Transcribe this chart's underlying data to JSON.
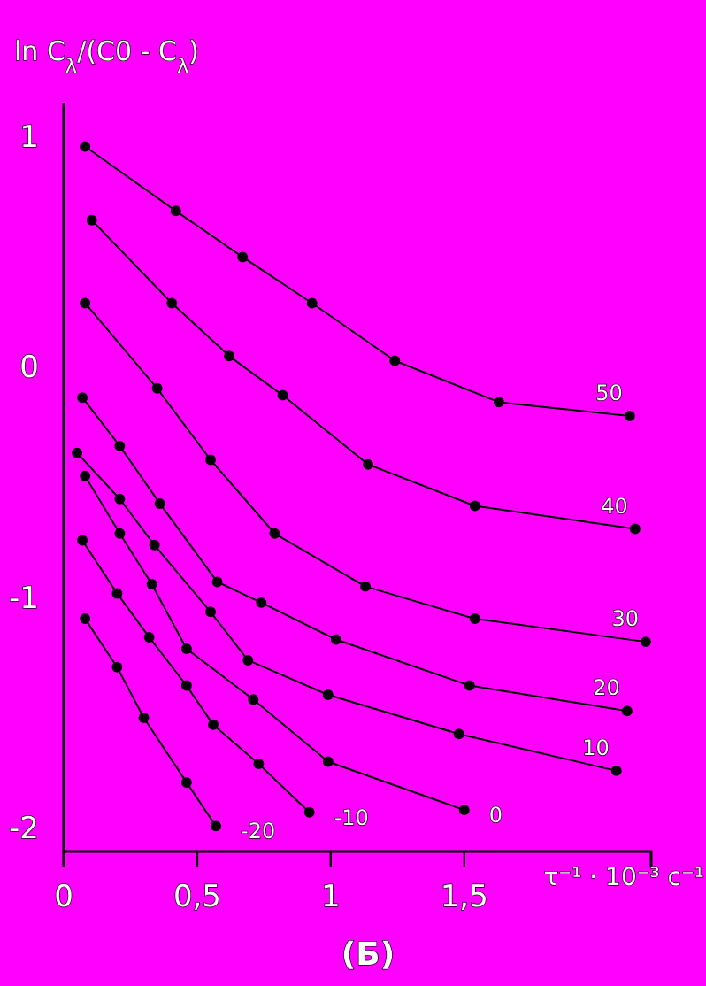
{
  "chart_data": {
    "type": "line",
    "ylabel": "ln C$_{λ}$/(C0 - C$_{λ}$)",
    "xlabel": "τ⁻¹ · 10⁻³ с⁻¹",
    "annotations": [
      "(Б)"
    ],
    "xlim": [
      0,
      2.2
    ],
    "ylim": [
      -2.1,
      1.15
    ],
    "xticks": [
      0,
      {
        "value": 0.5,
        "label": "0,5"
      },
      1,
      {
        "value": 1.5,
        "label": "1,5"
      }
    ],
    "yticks": [
      -2,
      -1,
      0,
      1
    ],
    "grid": false,
    "legend": false,
    "marker": "circle",
    "line_style": "solid",
    "series": [
      {
        "name": "50",
        "color": "#000000",
        "x": [
          0.08,
          0.42,
          0.67,
          0.93,
          1.24,
          1.63,
          2.12
        ],
        "values": [
          0.96,
          0.68,
          0.48,
          0.28,
          0.03,
          -0.15,
          -0.21
        ]
      },
      {
        "name": "40",
        "color": "#000000",
        "x": [
          0.105,
          0.405,
          0.62,
          0.82,
          1.14,
          1.54,
          2.14
        ],
        "values": [
          0.64,
          0.28,
          0.05,
          -0.12,
          -0.42,
          -0.6,
          -0.7
        ]
      },
      {
        "name": "30",
        "color": "#000000",
        "x": [
          0.08,
          0.35,
          0.55,
          0.79,
          1.13,
          1.54,
          2.18
        ],
        "values": [
          0.28,
          -0.09,
          -0.4,
          -0.72,
          -0.95,
          -1.09,
          -1.19
        ]
      },
      {
        "name": "20",
        "color": "#000000",
        "x": [
          0.07,
          0.21,
          0.36,
          0.575,
          0.74,
          1.02,
          1.52,
          2.11
        ],
        "values": [
          -0.13,
          -0.34,
          -0.59,
          -0.93,
          -1.02,
          -1.18,
          -1.38,
          -1.49
        ]
      },
      {
        "name": "10",
        "color": "#000000",
        "x": [
          0.05,
          0.21,
          0.34,
          0.55,
          0.69,
          0.99,
          1.48,
          2.07
        ],
        "values": [
          -0.37,
          -0.57,
          -0.77,
          -1.06,
          -1.27,
          -1.42,
          -1.59,
          -1.75
        ]
      },
      {
        "name": "0",
        "color": "#000000",
        "x": [
          0.08,
          0.21,
          0.33,
          0.46,
          0.71,
          0.99,
          1.5
        ],
        "values": [
          -0.47,
          -0.72,
          -0.94,
          -1.22,
          -1.44,
          -1.71,
          -1.92
        ]
      },
      {
        "name": "-10",
        "color": "#000000",
        "x": [
          0.07,
          0.2,
          0.32,
          0.46,
          0.56,
          0.73,
          0.92
        ],
        "values": [
          -0.75,
          -0.98,
          -1.17,
          -1.38,
          -1.55,
          -1.72,
          -1.93
        ]
      },
      {
        "name": "-20",
        "color": "#000000",
        "x": [
          0.08,
          0.2,
          0.3,
          0.46,
          0.57
        ],
        "values": [
          -1.09,
          -1.3,
          -1.52,
          -1.8,
          -1.99
        ]
      }
    ]
  }
}
